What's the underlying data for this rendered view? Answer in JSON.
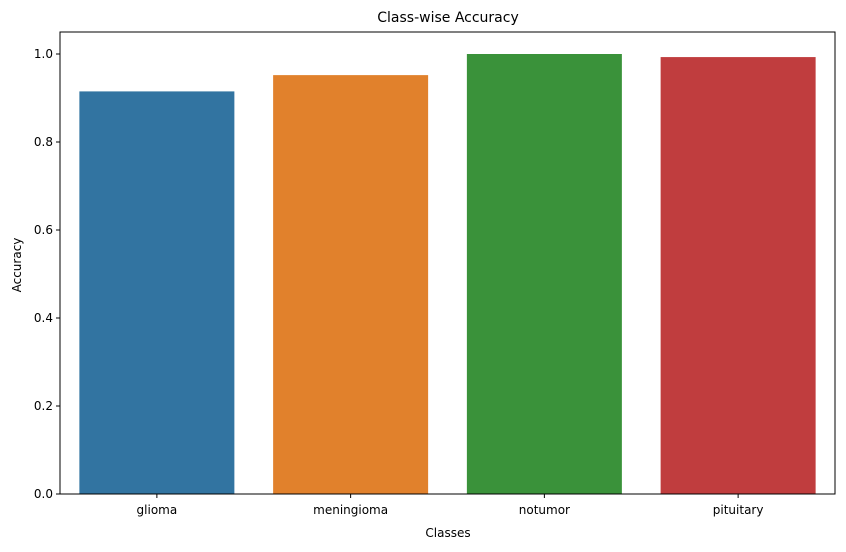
{
  "chart_data": {
    "type": "bar",
    "title": "Class-wise Accuracy",
    "xlabel": "Classes",
    "ylabel": "Accuracy",
    "categories": [
      "glioma",
      "meningioma",
      "notumor",
      "pituitary"
    ],
    "values": [
      0.915,
      0.952,
      1.0,
      0.993
    ],
    "colors": [
      "#3274a1",
      "#e1812c",
      "#3a923a",
      "#c03d3e"
    ],
    "ylim": [
      0,
      1.05
    ],
    "yticks": [
      0.0,
      0.2,
      0.4,
      0.6,
      0.8,
      1.0
    ],
    "ytick_labels": [
      "0.0",
      "0.2",
      "0.4",
      "0.6",
      "0.8",
      "1.0"
    ],
    "grid": false,
    "legend": "none"
  }
}
